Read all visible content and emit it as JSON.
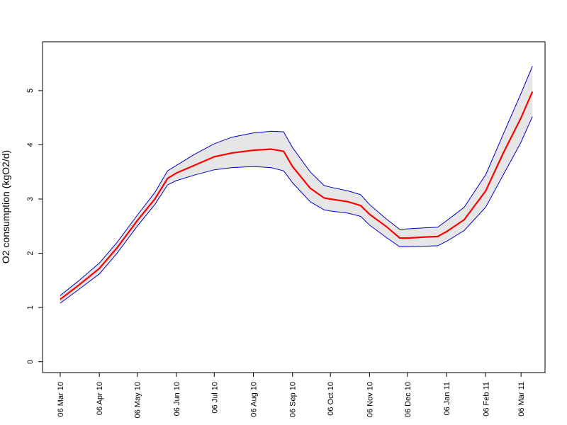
{
  "chart_data": {
    "type": "line",
    "title": "",
    "xlabel": "",
    "ylabel": "O2 consumption (kgO2/d)",
    "ylim": [
      -0.2,
      5.9
    ],
    "yticks": [
      0,
      1,
      2,
      3,
      4,
      5
    ],
    "grid": false,
    "legend": "none",
    "x_tick_labels": [
      "06 Mar 10",
      "06 Apr 10",
      "06 May 10",
      "06 Jun 10",
      "06 Jul 10",
      "06 Aug 10",
      "06 Sep 10",
      "06 Oct 10",
      "06 Nov 10",
      "06 Dec 10",
      "06 Jan 11",
      "06 Feb 11",
      "06 Mar 11"
    ],
    "x_range_dates": [
      "2010-02-20",
      "2011-03-25"
    ],
    "x": [
      "2010-03-06",
      "2010-03-20",
      "2010-04-06",
      "2010-04-20",
      "2010-05-06",
      "2010-05-20",
      "2010-05-30",
      "2010-06-06",
      "2010-06-20",
      "2010-07-06",
      "2010-07-20",
      "2010-08-06",
      "2010-08-20",
      "2010-08-30",
      "2010-09-06",
      "2010-09-20",
      "2010-10-01",
      "2010-10-06",
      "2010-10-20",
      "2010-10-30",
      "2010-11-06",
      "2010-11-20",
      "2010-11-30",
      "2010-12-06",
      "2010-12-20",
      "2010-12-30",
      "2011-01-06",
      "2011-01-20",
      "2011-02-06",
      "2011-02-20",
      "2011-03-06",
      "2011-03-15"
    ],
    "colors": {
      "mean": "#ff0000",
      "bounds": "#0000cc",
      "band": "#e6e6e6"
    },
    "series": [
      {
        "role": "mean",
        "values": [
          1.15,
          1.4,
          1.72,
          2.1,
          2.6,
          3.0,
          3.38,
          3.48,
          3.62,
          3.78,
          3.85,
          3.9,
          3.92,
          3.88,
          3.6,
          3.2,
          3.02,
          3.0,
          2.95,
          2.88,
          2.72,
          2.48,
          2.28,
          2.28,
          2.3,
          2.31,
          2.4,
          2.62,
          3.15,
          3.85,
          4.5,
          4.98
        ]
      },
      {
        "role": "upper",
        "values": [
          1.22,
          1.48,
          1.82,
          2.2,
          2.7,
          3.12,
          3.52,
          3.62,
          3.82,
          4.02,
          4.14,
          4.22,
          4.25,
          4.24,
          3.95,
          3.5,
          3.25,
          3.22,
          3.15,
          3.08,
          2.9,
          2.62,
          2.44,
          2.45,
          2.47,
          2.48,
          2.6,
          2.85,
          3.45,
          4.2,
          4.95,
          5.45
        ]
      },
      {
        "role": "lower",
        "values": [
          1.08,
          1.32,
          1.62,
          2.0,
          2.5,
          2.9,
          3.26,
          3.34,
          3.44,
          3.54,
          3.58,
          3.6,
          3.58,
          3.52,
          3.3,
          2.95,
          2.8,
          2.78,
          2.74,
          2.68,
          2.52,
          2.28,
          2.12,
          2.12,
          2.13,
          2.14,
          2.22,
          2.42,
          2.85,
          3.45,
          4.05,
          4.52
        ]
      }
    ]
  }
}
